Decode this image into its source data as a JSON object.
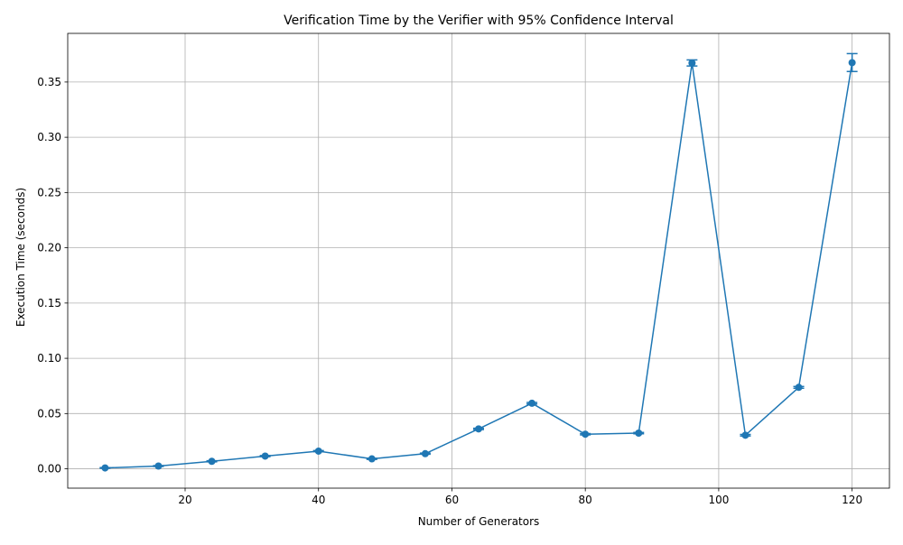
{
  "chart_data": {
    "type": "line",
    "title": "Verification Time by the Verifier with 95% Confidence Interval",
    "xlabel": "Number of Generators",
    "ylabel": "Execution Time (seconds)",
    "x": [
      8,
      16,
      24,
      32,
      40,
      48,
      56,
      64,
      72,
      80,
      88,
      96,
      104,
      112,
      120
    ],
    "series": [
      {
        "values": [
          0.0008,
          0.0025,
          0.0068,
          0.0115,
          0.016,
          0.009,
          0.0137,
          0.0361,
          0.0593,
          0.0313,
          0.0323,
          0.3672,
          0.0304,
          0.0737,
          0.3675
        ],
        "ci_low": [
          0.0005,
          0.0021,
          0.0063,
          0.011,
          0.0155,
          0.0085,
          0.0132,
          0.0355,
          0.0586,
          0.0307,
          0.0317,
          0.3645,
          0.0297,
          0.0729,
          0.3595
        ],
        "ci_high": [
          0.0011,
          0.0029,
          0.0073,
          0.012,
          0.0165,
          0.0095,
          0.0142,
          0.0367,
          0.06,
          0.0319,
          0.0329,
          0.37,
          0.0311,
          0.0745,
          0.3757
        ]
      }
    ],
    "xlim": [
      2.4,
      125.6
    ],
    "ylim": [
      -0.0175,
      0.394
    ],
    "xticks": [
      20,
      40,
      60,
      80,
      100,
      120
    ],
    "xtick_labels": [
      "20",
      "40",
      "60",
      "80",
      "100",
      "120"
    ],
    "yticks": [
      0.0,
      0.05,
      0.1,
      0.15,
      0.2,
      0.25,
      0.3,
      0.35
    ],
    "ytick_labels": [
      "0.00",
      "0.05",
      "0.10",
      "0.15",
      "0.20",
      "0.25",
      "0.30",
      "0.35"
    ],
    "grid": true,
    "line_color": "#1f77b4",
    "grid_color": "#b0b0b0"
  }
}
